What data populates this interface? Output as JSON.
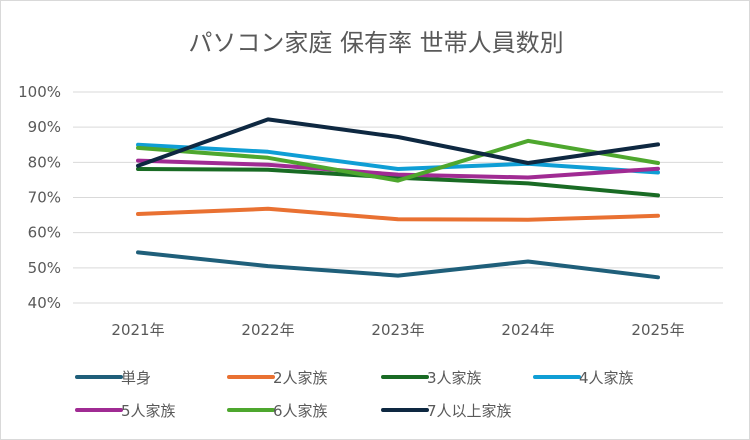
{
  "chart_data": {
    "type": "line",
    "title": "パソコン家庭 保有率 世帯人員数別",
    "categories": [
      "2021年",
      "2022年",
      "2023年",
      "2024年",
      "2025年"
    ],
    "ylim": [
      0.4,
      1.0
    ],
    "yticks": [
      "100%",
      "90%",
      "80%",
      "70%",
      "60%",
      "50%",
      "40%"
    ],
    "grid": true,
    "legend_position": "bottom",
    "series": [
      {
        "name": "単身",
        "color": "#1f5f7a",
        "values": [
          0.544,
          0.505,
          0.478,
          0.518,
          0.473
        ]
      },
      {
        "name": "2人家族",
        "color": "#e97132",
        "values": [
          0.653,
          0.668,
          0.638,
          0.637,
          0.648
        ]
      },
      {
        "name": "3人家族",
        "color": "#196b24",
        "values": [
          0.781,
          0.779,
          0.756,
          0.74,
          0.706
        ]
      },
      {
        "name": "4人家族",
        "color": "#0f9ed5",
        "values": [
          0.85,
          0.83,
          0.781,
          0.796,
          0.771
        ]
      },
      {
        "name": "5人家族",
        "color": "#a02b93",
        "values": [
          0.805,
          0.793,
          0.765,
          0.757,
          0.782
        ]
      },
      {
        "name": "6人家族",
        "color": "#4ea72e",
        "values": [
          0.841,
          0.813,
          0.748,
          0.861,
          0.798
        ]
      },
      {
        "name": "7人以上家族",
        "color": "#0e2841",
        "values": [
          0.79,
          0.922,
          0.872,
          0.798,
          0.851
        ]
      }
    ]
  }
}
